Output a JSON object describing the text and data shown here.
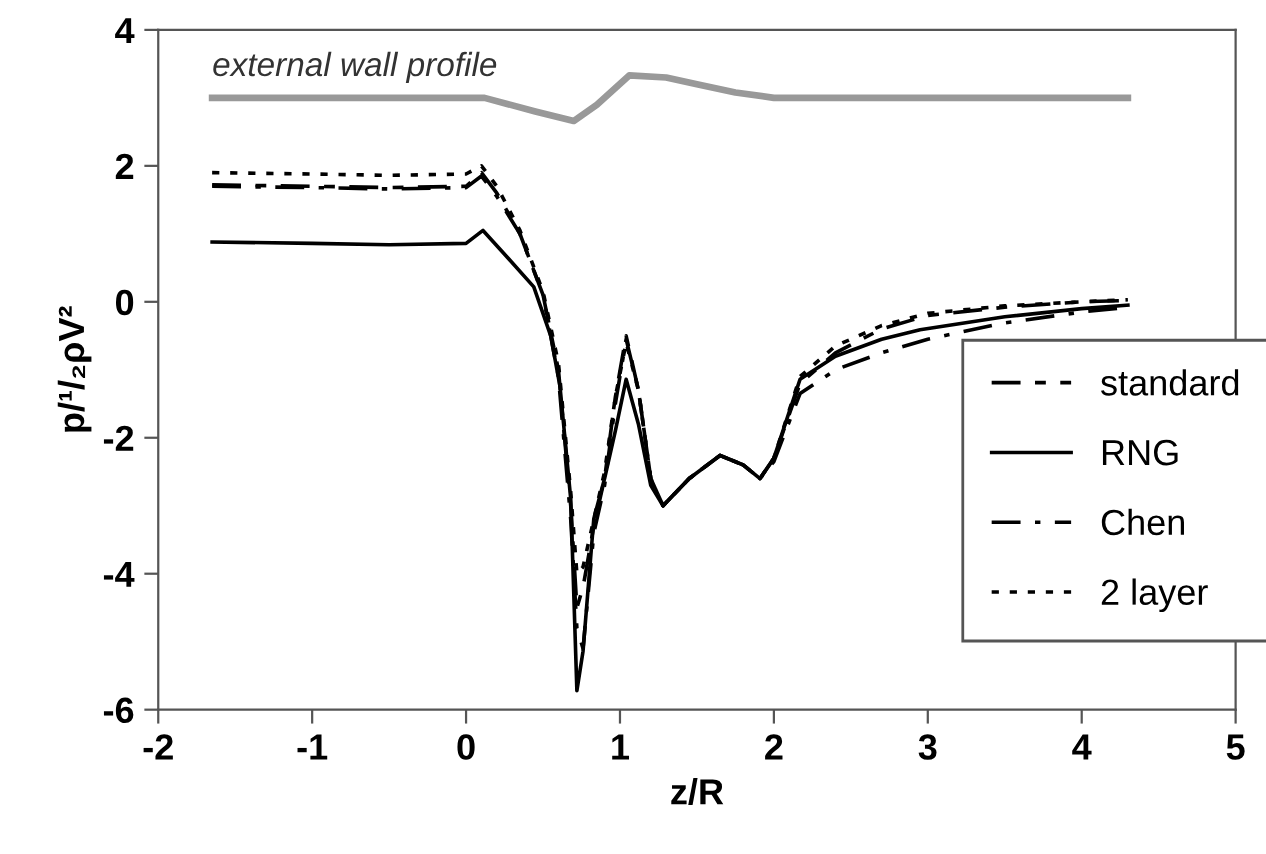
{
  "chart_data": {
    "type": "line",
    "xlabel": "z/R",
    "ylabel": "p/¹/₂ρV²",
    "xlim": [
      -2,
      5
    ],
    "xticks": [
      -2,
      -1,
      0,
      1,
      2,
      3,
      4,
      5
    ],
    "ylim": [
      -6,
      4
    ],
    "yticks": [
      -6,
      -4,
      -2,
      0,
      2,
      4
    ],
    "grid": false,
    "legend": "bottom right",
    "marker": "none",
    "series": [
      {
        "name": "external wall profile",
        "color": "#999999",
        "line_style": "solid",
        "x": [
          -1.65,
          0.12,
          0.45,
          0.7,
          0.85,
          1.06,
          1.3,
          1.5,
          1.75,
          2.0,
          2.5,
          4.3
        ],
        "values": [
          3.0,
          3.0,
          2.8,
          2.66,
          2.9,
          3.33,
          3.3,
          3.2,
          3.08,
          3.0,
          3.0,
          3.0
        ]
      },
      {
        "name": "standard",
        "color": "#000000",
        "line_style": "dashed",
        "x": [
          -1.65,
          -1.0,
          -0.5,
          0.0,
          0.1,
          0.2,
          0.35,
          0.5,
          0.6,
          0.68,
          0.72,
          0.76,
          0.83,
          0.9,
          0.97,
          1.04,
          1.12,
          1.2,
          1.28,
          1.45,
          1.65,
          1.8,
          1.91,
          2.0,
          2.17,
          2.4,
          2.7,
          3.0,
          3.5,
          4.0,
          4.3
        ],
        "values": [
          1.72,
          1.7,
          1.68,
          1.7,
          1.9,
          1.6,
          1.0,
          0.1,
          -1.0,
          -3.0,
          -4.5,
          -4.2,
          -3.3,
          -2.6,
          -1.4,
          -0.5,
          -1.3,
          -2.6,
          -3.0,
          -2.6,
          -2.26,
          -2.4,
          -2.6,
          -2.3,
          -1.2,
          -0.75,
          -0.4,
          -0.2,
          -0.08,
          0.0,
          0.02
        ]
      },
      {
        "name": "RNG",
        "color": "#000000",
        "line_style": "solid",
        "x": [
          -1.65,
          -1.0,
          -0.5,
          0.0,
          0.11,
          0.25,
          0.44,
          0.55,
          0.61,
          0.68,
          0.72,
          0.76,
          0.83,
          0.9,
          0.97,
          1.04,
          1.12,
          1.2,
          1.28,
          1.45,
          1.65,
          1.8,
          1.91,
          2.0,
          2.17,
          2.4,
          2.7,
          2.95,
          3.5,
          4.0,
          4.3
        ],
        "values": [
          0.88,
          0.86,
          0.84,
          0.86,
          1.05,
          0.7,
          0.22,
          -0.5,
          -1.24,
          -2.9,
          -5.72,
          -5.14,
          -3.19,
          -2.6,
          -1.9,
          -1.14,
          -1.8,
          -2.7,
          -3.0,
          -2.6,
          -2.26,
          -2.4,
          -2.6,
          -2.3,
          -1.14,
          -0.8,
          -0.55,
          -0.41,
          -0.22,
          -0.1,
          -0.05
        ]
      },
      {
        "name": "Chen",
        "color": "#000000",
        "line_style": "dashdot",
        "x": [
          -1.65,
          -1.0,
          -0.5,
          0.0,
          0.1,
          0.2,
          0.35,
          0.5,
          0.6,
          0.68,
          0.72,
          0.76,
          0.83,
          0.9,
          0.97,
          1.04,
          1.12,
          1.2,
          1.28,
          1.45,
          1.65,
          1.8,
          1.91,
          2.0,
          2.17,
          2.4,
          2.7,
          3.0,
          3.5,
          4.0,
          4.3
        ],
        "values": [
          1.7,
          1.68,
          1.66,
          1.68,
          1.85,
          1.55,
          1.0,
          0.1,
          -1.1,
          -3.2,
          -4.8,
          -5.1,
          -3.4,
          -2.7,
          -1.5,
          -0.55,
          -1.3,
          -2.6,
          -3.0,
          -2.6,
          -2.26,
          -2.4,
          -2.6,
          -2.35,
          -1.35,
          -1.0,
          -0.75,
          -0.55,
          -0.31,
          -0.15,
          -0.08
        ]
      },
      {
        "name": "2 layer",
        "color": "#000000",
        "line_style": "dotted",
        "x": [
          -1.65,
          -1.0,
          -0.5,
          0.0,
          0.1,
          0.2,
          0.35,
          0.5,
          0.6,
          0.68,
          0.72,
          0.76,
          0.83,
          0.9,
          0.97,
          1.04,
          1.12,
          1.2,
          1.28,
          1.45,
          1.65,
          1.8,
          1.91,
          2.0,
          2.17,
          2.4,
          2.7,
          3.0,
          3.5,
          4.0,
          4.3
        ],
        "values": [
          1.9,
          1.88,
          1.86,
          1.88,
          2.0,
          1.7,
          1.05,
          0.15,
          -0.9,
          -2.8,
          -4.0,
          -3.9,
          -3.2,
          -2.5,
          -1.4,
          -0.6,
          -1.3,
          -2.6,
          -3.0,
          -2.6,
          -2.26,
          -2.4,
          -2.6,
          -2.3,
          -1.1,
          -0.65,
          -0.35,
          -0.17,
          -0.06,
          0.0,
          0.03
        ]
      }
    ]
  }
}
